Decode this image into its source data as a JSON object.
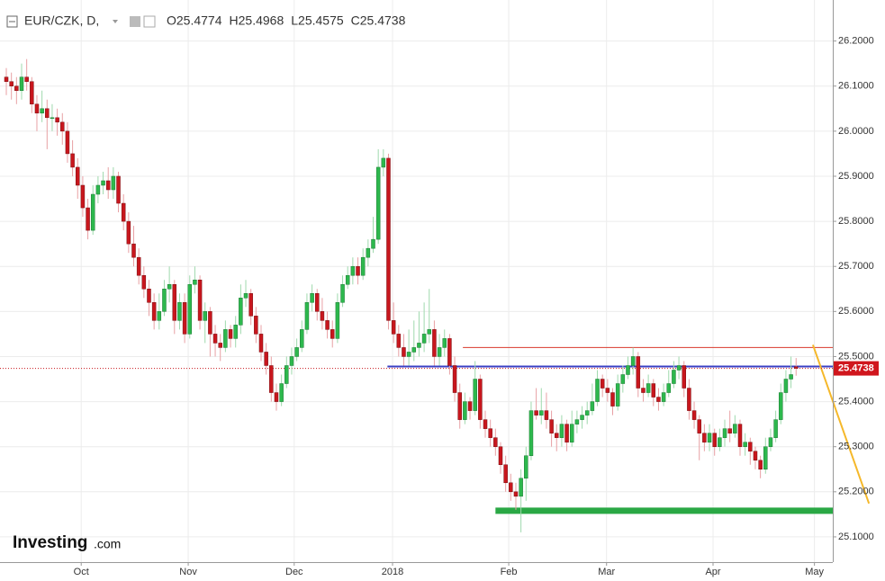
{
  "chart_data": {
    "type": "candlestick",
    "header": {
      "symbol": "EUR/CZK, D,",
      "ohlc": [
        {
          "label": "O",
          "value": 25.4774
        },
        {
          "label": "H",
          "value": 25.4968
        },
        {
          "label": "L",
          "value": 25.4575
        },
        {
          "label": "C",
          "value": 25.4738
        }
      ]
    },
    "last_price": 25.4738,
    "logo": {
      "brand": "Investing",
      "suffix": ".com"
    },
    "up_color": "#2db84d",
    "down_color": "#c8161d",
    "grid": true,
    "ylim": [
      25.044,
      26.291
    ],
    "yticks": [
      {
        "value": 25.1,
        "label": "25.1000"
      },
      {
        "value": 25.2,
        "label": "25.2000"
      },
      {
        "value": 25.3,
        "label": "25.3000"
      },
      {
        "value": 25.4,
        "label": "25.4000"
      },
      {
        "value": 25.5,
        "label": "25.5000"
      },
      {
        "value": 25.6,
        "label": "25.6000"
      },
      {
        "value": 25.7,
        "label": "25.7000"
      },
      {
        "value": 25.8,
        "label": "25.8000"
      },
      {
        "value": 25.9,
        "label": "25.9000"
      },
      {
        "value": 26.0,
        "label": "26.0000"
      },
      {
        "value": 26.1,
        "label": "26.1000"
      },
      {
        "value": 26.2,
        "label": "26.2000"
      }
    ],
    "xlim": [
      -1.24,
      162.2
    ],
    "xticks": [
      {
        "value": 14.7,
        "label": "Oct"
      },
      {
        "value": 35.7,
        "label": "Nov"
      },
      {
        "value": 56.5,
        "label": "Dec"
      },
      {
        "value": 75.8,
        "label": "2018"
      },
      {
        "value": 98.6,
        "label": "Feb"
      },
      {
        "value": 117.8,
        "label": "Mar"
      },
      {
        "value": 138.7,
        "label": "Apr"
      },
      {
        "value": 158.6,
        "label": "May"
      }
    ],
    "drawings": [
      {
        "color": "#d9382c",
        "x": [
          89.6,
          162.2
        ],
        "y": [
          25.52,
          25.52
        ],
        "width": 1
      },
      {
        "color": "#3a3fc4",
        "x": [
          74.8,
          162.2
        ],
        "y": [
          25.478,
          25.478
        ],
        "width": 2
      },
      {
        "color": "#2aa845",
        "x": [
          96.0,
          162.2
        ],
        "y": [
          25.158,
          25.158
        ],
        "width": 7
      },
      {
        "color": "#f5b82a",
        "x": [
          158.3,
          169.3
        ],
        "y": [
          25.526,
          25.174
        ],
        "width": 2
      }
    ],
    "candles": [
      [
        26.12,
        26.14,
        26.08,
        26.11
      ],
      [
        26.11,
        26.13,
        26.07,
        26.1
      ],
      [
        26.1,
        26.12,
        26.06,
        26.09
      ],
      [
        26.09,
        26.15,
        26.07,
        26.12
      ],
      [
        26.12,
        26.16,
        26.09,
        26.11
      ],
      [
        26.11,
        26.12,
        26.04,
        26.06
      ],
      [
        26.06,
        26.08,
        26.0,
        26.04
      ],
      [
        26.04,
        26.09,
        26.02,
        26.05
      ],
      [
        26.05,
        26.07,
        25.96,
        26.03
      ],
      [
        26.03,
        26.06,
        26.0,
        26.03
      ],
      [
        26.03,
        26.05,
        25.99,
        26.02
      ],
      [
        26.02,
        26.04,
        25.97,
        26.0
      ],
      [
        26.0,
        26.02,
        25.93,
        25.95
      ],
      [
        25.95,
        25.98,
        25.9,
        25.92
      ],
      [
        25.92,
        25.94,
        25.85,
        25.88
      ],
      [
        25.88,
        25.9,
        25.81,
        25.83
      ],
      [
        25.83,
        25.85,
        25.76,
        25.78
      ],
      [
        25.78,
        25.88,
        25.77,
        25.86
      ],
      [
        25.86,
        25.9,
        25.84,
        25.88
      ],
      [
        25.88,
        25.91,
        25.86,
        25.89
      ],
      [
        25.89,
        25.92,
        25.85,
        25.87
      ],
      [
        25.87,
        25.92,
        25.85,
        25.9
      ],
      [
        25.9,
        25.91,
        25.82,
        25.84
      ],
      [
        25.84,
        25.86,
        25.78,
        25.8
      ],
      [
        25.8,
        25.82,
        25.73,
        25.75
      ],
      [
        25.75,
        25.79,
        25.7,
        25.72
      ],
      [
        25.72,
        25.74,
        25.66,
        25.68
      ],
      [
        25.68,
        25.7,
        25.63,
        25.65
      ],
      [
        25.65,
        25.67,
        25.59,
        25.62
      ],
      [
        25.62,
        25.64,
        25.56,
        25.58
      ],
      [
        25.58,
        25.64,
        25.56,
        25.6
      ],
      [
        25.6,
        25.67,
        25.59,
        25.65
      ],
      [
        25.65,
        25.7,
        25.62,
        25.66
      ],
      [
        25.66,
        25.67,
        25.55,
        25.58
      ],
      [
        25.58,
        25.64,
        25.56,
        25.62
      ],
      [
        25.62,
        25.64,
        25.53,
        25.55
      ],
      [
        25.55,
        25.68,
        25.54,
        25.66
      ],
      [
        25.66,
        25.7,
        25.64,
        25.67
      ],
      [
        25.67,
        25.68,
        25.56,
        25.58
      ],
      [
        25.58,
        25.62,
        25.53,
        25.6
      ],
      [
        25.6,
        25.61,
        25.5,
        25.55
      ],
      [
        25.55,
        25.57,
        25.5,
        25.53
      ],
      [
        25.53,
        25.55,
        25.49,
        25.52
      ],
      [
        25.52,
        25.58,
        25.51,
        25.56
      ],
      [
        25.56,
        25.57,
        25.52,
        25.54
      ],
      [
        25.54,
        25.59,
        25.52,
        25.57
      ],
      [
        25.57,
        25.66,
        25.55,
        25.63
      ],
      [
        25.63,
        25.67,
        25.61,
        25.64
      ],
      [
        25.64,
        25.65,
        25.57,
        25.59
      ],
      [
        25.59,
        25.61,
        25.53,
        25.55
      ],
      [
        25.55,
        25.57,
        25.49,
        25.51
      ],
      [
        25.51,
        25.53,
        25.46,
        25.48
      ],
      [
        25.48,
        25.5,
        25.4,
        25.42
      ],
      [
        25.42,
        25.44,
        25.38,
        25.4
      ],
      [
        25.4,
        25.46,
        25.39,
        25.44
      ],
      [
        25.44,
        25.5,
        25.43,
        25.48
      ],
      [
        25.48,
        25.52,
        25.46,
        25.5
      ],
      [
        25.5,
        25.54,
        25.49,
        25.52
      ],
      [
        25.52,
        25.58,
        25.51,
        25.56
      ],
      [
        25.56,
        25.64,
        25.55,
        25.62
      ],
      [
        25.62,
        25.66,
        25.6,
        25.64
      ],
      [
        25.64,
        25.65,
        25.58,
        25.6
      ],
      [
        25.6,
        25.63,
        25.56,
        25.58
      ],
      [
        25.58,
        25.6,
        25.54,
        25.56
      ],
      [
        25.56,
        25.58,
        25.52,
        25.54
      ],
      [
        25.54,
        25.64,
        25.53,
        25.62
      ],
      [
        25.62,
        25.68,
        25.61,
        25.66
      ],
      [
        25.66,
        25.7,
        25.65,
        25.68
      ],
      [
        25.68,
        25.72,
        25.66,
        25.7
      ],
      [
        25.7,
        25.72,
        25.66,
        25.68
      ],
      [
        25.68,
        25.74,
        25.67,
        25.72
      ],
      [
        25.72,
        25.76,
        25.7,
        25.74
      ],
      [
        25.74,
        25.81,
        25.73,
        25.76
      ],
      [
        25.76,
        25.96,
        25.75,
        25.92
      ],
      [
        25.92,
        25.96,
        25.9,
        25.94
      ],
      [
        25.94,
        25.95,
        25.56,
        25.58
      ],
      [
        25.58,
        25.62,
        25.53,
        25.55
      ],
      [
        25.55,
        25.57,
        25.5,
        25.52
      ],
      [
        25.52,
        25.55,
        25.48,
        25.5
      ],
      [
        25.5,
        25.56,
        25.48,
        25.51
      ],
      [
        25.51,
        25.58,
        25.49,
        25.52
      ],
      [
        25.52,
        25.6,
        25.5,
        25.53
      ],
      [
        25.53,
        25.62,
        25.51,
        25.55
      ],
      [
        25.55,
        25.65,
        25.53,
        25.56
      ],
      [
        25.56,
        25.58,
        25.48,
        25.5
      ],
      [
        25.5,
        25.55,
        25.48,
        25.52
      ],
      [
        25.52,
        25.56,
        25.5,
        25.54
      ],
      [
        25.54,
        25.55,
        25.46,
        25.48
      ],
      [
        25.48,
        25.5,
        25.4,
        25.42
      ],
      [
        25.42,
        25.44,
        25.34,
        25.36
      ],
      [
        25.36,
        25.42,
        25.35,
        25.4
      ],
      [
        25.4,
        25.41,
        25.36,
        25.38
      ],
      [
        25.38,
        25.49,
        25.37,
        25.45
      ],
      [
        25.45,
        25.46,
        25.34,
        25.36
      ],
      [
        25.36,
        25.38,
        25.32,
        25.34
      ],
      [
        25.34,
        25.36,
        25.3,
        25.32
      ],
      [
        25.32,
        25.34,
        25.28,
        25.3
      ],
      [
        25.3,
        25.31,
        25.24,
        25.26
      ],
      [
        25.26,
        25.28,
        25.2,
        25.22
      ],
      [
        25.22,
        25.24,
        25.18,
        25.2
      ],
      [
        25.2,
        25.22,
        25.16,
        25.19
      ],
      [
        25.19,
        25.25,
        25.11,
        25.23
      ],
      [
        25.23,
        25.3,
        25.18,
        25.28
      ],
      [
        25.28,
        25.4,
        25.27,
        25.38
      ],
      [
        25.38,
        25.43,
        25.36,
        25.37
      ],
      [
        25.37,
        25.43,
        25.35,
        25.38
      ],
      [
        25.38,
        25.42,
        25.34,
        25.36
      ],
      [
        25.36,
        25.38,
        25.3,
        25.33
      ],
      [
        25.33,
        25.35,
        25.29,
        25.32
      ],
      [
        25.32,
        25.37,
        25.3,
        25.35
      ],
      [
        25.35,
        25.36,
        25.29,
        25.31
      ],
      [
        25.31,
        25.38,
        25.3,
        25.35
      ],
      [
        25.35,
        25.38,
        25.33,
        25.36
      ],
      [
        25.36,
        25.39,
        25.34,
        25.37
      ],
      [
        25.37,
        25.4,
        25.35,
        25.38
      ],
      [
        25.38,
        25.44,
        25.37,
        25.4
      ],
      [
        25.4,
        25.47,
        25.39,
        25.45
      ],
      [
        25.45,
        25.46,
        25.41,
        25.43
      ],
      [
        25.43,
        25.45,
        25.4,
        25.42
      ],
      [
        25.42,
        25.43,
        25.37,
        25.39
      ],
      [
        25.39,
        25.46,
        25.38,
        25.44
      ],
      [
        25.44,
        25.48,
        25.42,
        25.46
      ],
      [
        25.46,
        25.5,
        25.45,
        25.48
      ],
      [
        25.48,
        25.52,
        25.46,
        25.5
      ],
      [
        25.5,
        25.51,
        25.41,
        25.43
      ],
      [
        25.43,
        25.45,
        25.4,
        25.42
      ],
      [
        25.42,
        25.46,
        25.41,
        25.44
      ],
      [
        25.44,
        25.45,
        25.39,
        25.41
      ],
      [
        25.41,
        25.43,
        25.38,
        25.4
      ],
      [
        25.4,
        25.44,
        25.39,
        25.42
      ],
      [
        25.42,
        25.47,
        25.41,
        25.44
      ],
      [
        25.44,
        25.49,
        25.43,
        25.47
      ],
      [
        25.47,
        25.5,
        25.45,
        25.48
      ],
      [
        25.48,
        25.49,
        25.41,
        25.43
      ],
      [
        25.43,
        25.45,
        25.36,
        25.38
      ],
      [
        25.38,
        25.4,
        25.34,
        25.36
      ],
      [
        25.36,
        25.37,
        25.27,
        25.33
      ],
      [
        25.33,
        25.35,
        25.29,
        25.31
      ],
      [
        25.31,
        25.35,
        25.29,
        25.33
      ],
      [
        25.33,
        25.34,
        25.28,
        25.3
      ],
      [
        25.3,
        25.34,
        25.29,
        25.32
      ],
      [
        25.32,
        25.36,
        25.3,
        25.34
      ],
      [
        25.34,
        25.38,
        25.31,
        25.33
      ],
      [
        25.33,
        25.37,
        25.32,
        25.35
      ],
      [
        25.35,
        25.36,
        25.28,
        25.3
      ],
      [
        25.3,
        25.33,
        25.28,
        25.31
      ],
      [
        25.31,
        25.32,
        25.26,
        25.29
      ],
      [
        25.29,
        25.3,
        25.25,
        25.27
      ],
      [
        25.27,
        25.28,
        25.23,
        25.25
      ],
      [
        25.25,
        25.32,
        25.24,
        25.3
      ],
      [
        25.3,
        25.34,
        25.29,
        25.32
      ],
      [
        25.32,
        25.38,
        25.31,
        25.36
      ],
      [
        25.36,
        25.44,
        25.35,
        25.42
      ],
      [
        25.42,
        25.47,
        25.4,
        25.45
      ],
      [
        25.45,
        25.5,
        25.43,
        25.46
      ],
      [
        25.4774,
        25.4968,
        25.4575,
        25.4738
      ]
    ]
  }
}
